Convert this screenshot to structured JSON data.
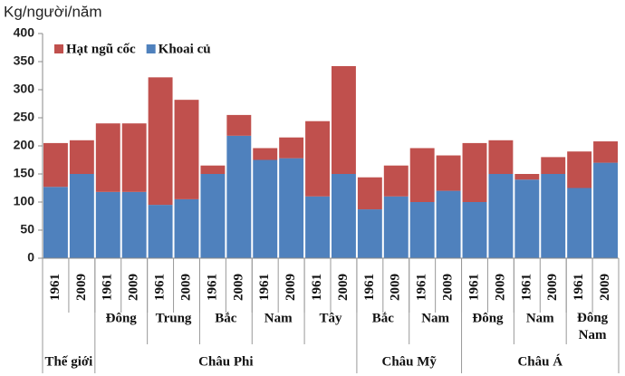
{
  "chart_data": {
    "type": "stacked-bar",
    "ylabel": "Kg/người/năm",
    "categories": [
      "1961",
      "2009",
      "1961",
      "2009",
      "1961",
      "2009",
      "1961",
      "2009",
      "1961",
      "2009",
      "1961",
      "2009",
      "1961",
      "2009",
      "1961",
      "2009",
      "1961",
      "2009",
      "1961",
      "2009",
      "1961",
      "2009"
    ],
    "groups": [
      {
        "name": "Thế giới",
        "subgroups": [
          null
        ]
      },
      {
        "name": "Châu Phi",
        "subgroups": [
          "Đông",
          "Trung",
          "Bắc",
          "Nam",
          "Tây"
        ]
      },
      {
        "name": "Châu Mỹ",
        "subgroups": [
          "Bắc",
          "Nam"
        ]
      },
      {
        "name": "Châu Á",
        "subgroups": [
          "Đông",
          "Nam",
          "Đông Nam"
        ]
      }
    ],
    "series": [
      {
        "name": "Hạt ngũ cốc",
        "color": "#c0504d",
        "values": [
          78,
          60,
          122,
          122,
          227,
          177,
          15,
          37,
          21,
          37,
          134,
          192,
          57,
          55,
          96,
          63,
          105,
          60,
          10,
          30,
          65,
          38
        ]
      },
      {
        "name": "Khoai củ",
        "color": "#4f81bd",
        "values": [
          127,
          150,
          118,
          118,
          95,
          105,
          150,
          218,
          175,
          178,
          110,
          150,
          87,
          110,
          100,
          120,
          100,
          150,
          140,
          150,
          125,
          170
        ]
      }
    ],
    "ylim": [
      0,
      400
    ],
    "yticks": [
      0,
      50,
      100,
      150,
      200,
      250,
      300,
      350,
      400
    ],
    "legend": "top-left"
  }
}
